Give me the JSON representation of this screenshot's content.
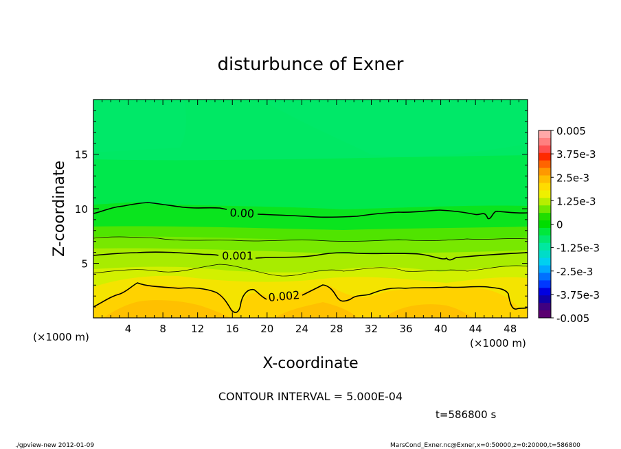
{
  "chart_data": {
    "type": "contour",
    "title": "disturbunce of Exner",
    "xlabel": "X-coordinate",
    "ylabel": "Z-coordinate",
    "x_unit": "(×1000 m)",
    "xlim": [
      0,
      50
    ],
    "ylim": [
      0,
      20
    ],
    "x_ticks": [
      "4",
      "8",
      "12",
      "16",
      "20",
      "24",
      "28",
      "32",
      "36",
      "40",
      "44",
      "48"
    ],
    "y_ticks": [
      "5",
      "10",
      "15"
    ],
    "colorbar": {
      "min": -0.005,
      "max": 0.005,
      "labels": [
        "0.005",
        "3.75e-3",
        "2.5e-3",
        "1.25e-3",
        "0",
        "-1.25e-3",
        "-2.5e-3",
        "-3.75e-3",
        "-0.005"
      ],
      "colors": [
        "#ffa8a8",
        "#ff8080",
        "#ff5050",
        "#ff2a00",
        "#ff6400",
        "#ff9800",
        "#ffbe00",
        "#ffdc00",
        "#eef000",
        "#b8ee00",
        "#70e800",
        "#20dd00",
        "#00dd00",
        "#00e83c",
        "#00e870",
        "#00e8a0",
        "#00dcc8",
        "#00d0f0",
        "#00a8ff",
        "#0070ff",
        "#0038ff",
        "#0000e0",
        "#1000a8",
        "#400080",
        "#5a0070"
      ]
    },
    "contour_labels": [
      "0.00",
      "0.001",
      "0.002"
    ],
    "contour_interval_text": "CONTOUR INTERVAL = 5.000E-04",
    "time_text": "t=586800  s"
  },
  "footer": {
    "left": "./gpview-new   2012-01-09",
    "right": "MarsCond_Exner.nc@Exner,x=0:50000,z=0:20000,t=586800"
  }
}
